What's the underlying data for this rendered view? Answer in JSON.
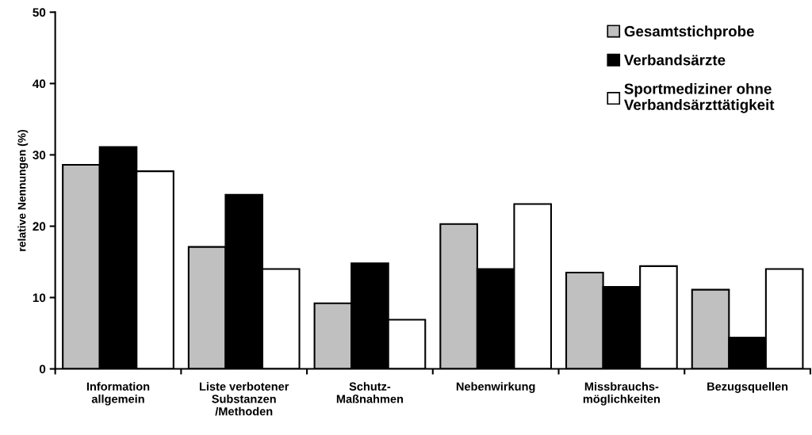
{
  "chart_data": {
    "type": "bar",
    "ylabel": "relative Nennungen (%)",
    "categories": [
      "Information\nallgemein",
      "Liste verbotener\nSubstanzen\n/Methoden",
      "Schutz-\nMaßnahmen",
      "Nebenwirkung",
      "Missbrauchs-\nmöglichkeiten",
      "Bezugsquellen"
    ],
    "series": [
      {
        "name": "Gesamtstichprobe",
        "color": "#c0c0c0",
        "values": [
          28.6,
          17.1,
          9.2,
          20.3,
          13.5,
          11.1
        ]
      },
      {
        "name": "Verbandsärzte",
        "color": "#000000",
        "values": [
          31.1,
          24.4,
          14.8,
          14.0,
          11.5,
          4.4
        ]
      },
      {
        "name": "Sportmediziner ohne\nVerbandsärzttätigkeit",
        "color": "#ffffff",
        "values": [
          27.7,
          14.0,
          6.9,
          23.1,
          14.4,
          14.0
        ]
      }
    ],
    "ylim": [
      0,
      50
    ],
    "yticks": [
      0,
      10,
      20,
      30,
      40,
      50
    ],
    "grid": false,
    "legend": "top right"
  }
}
